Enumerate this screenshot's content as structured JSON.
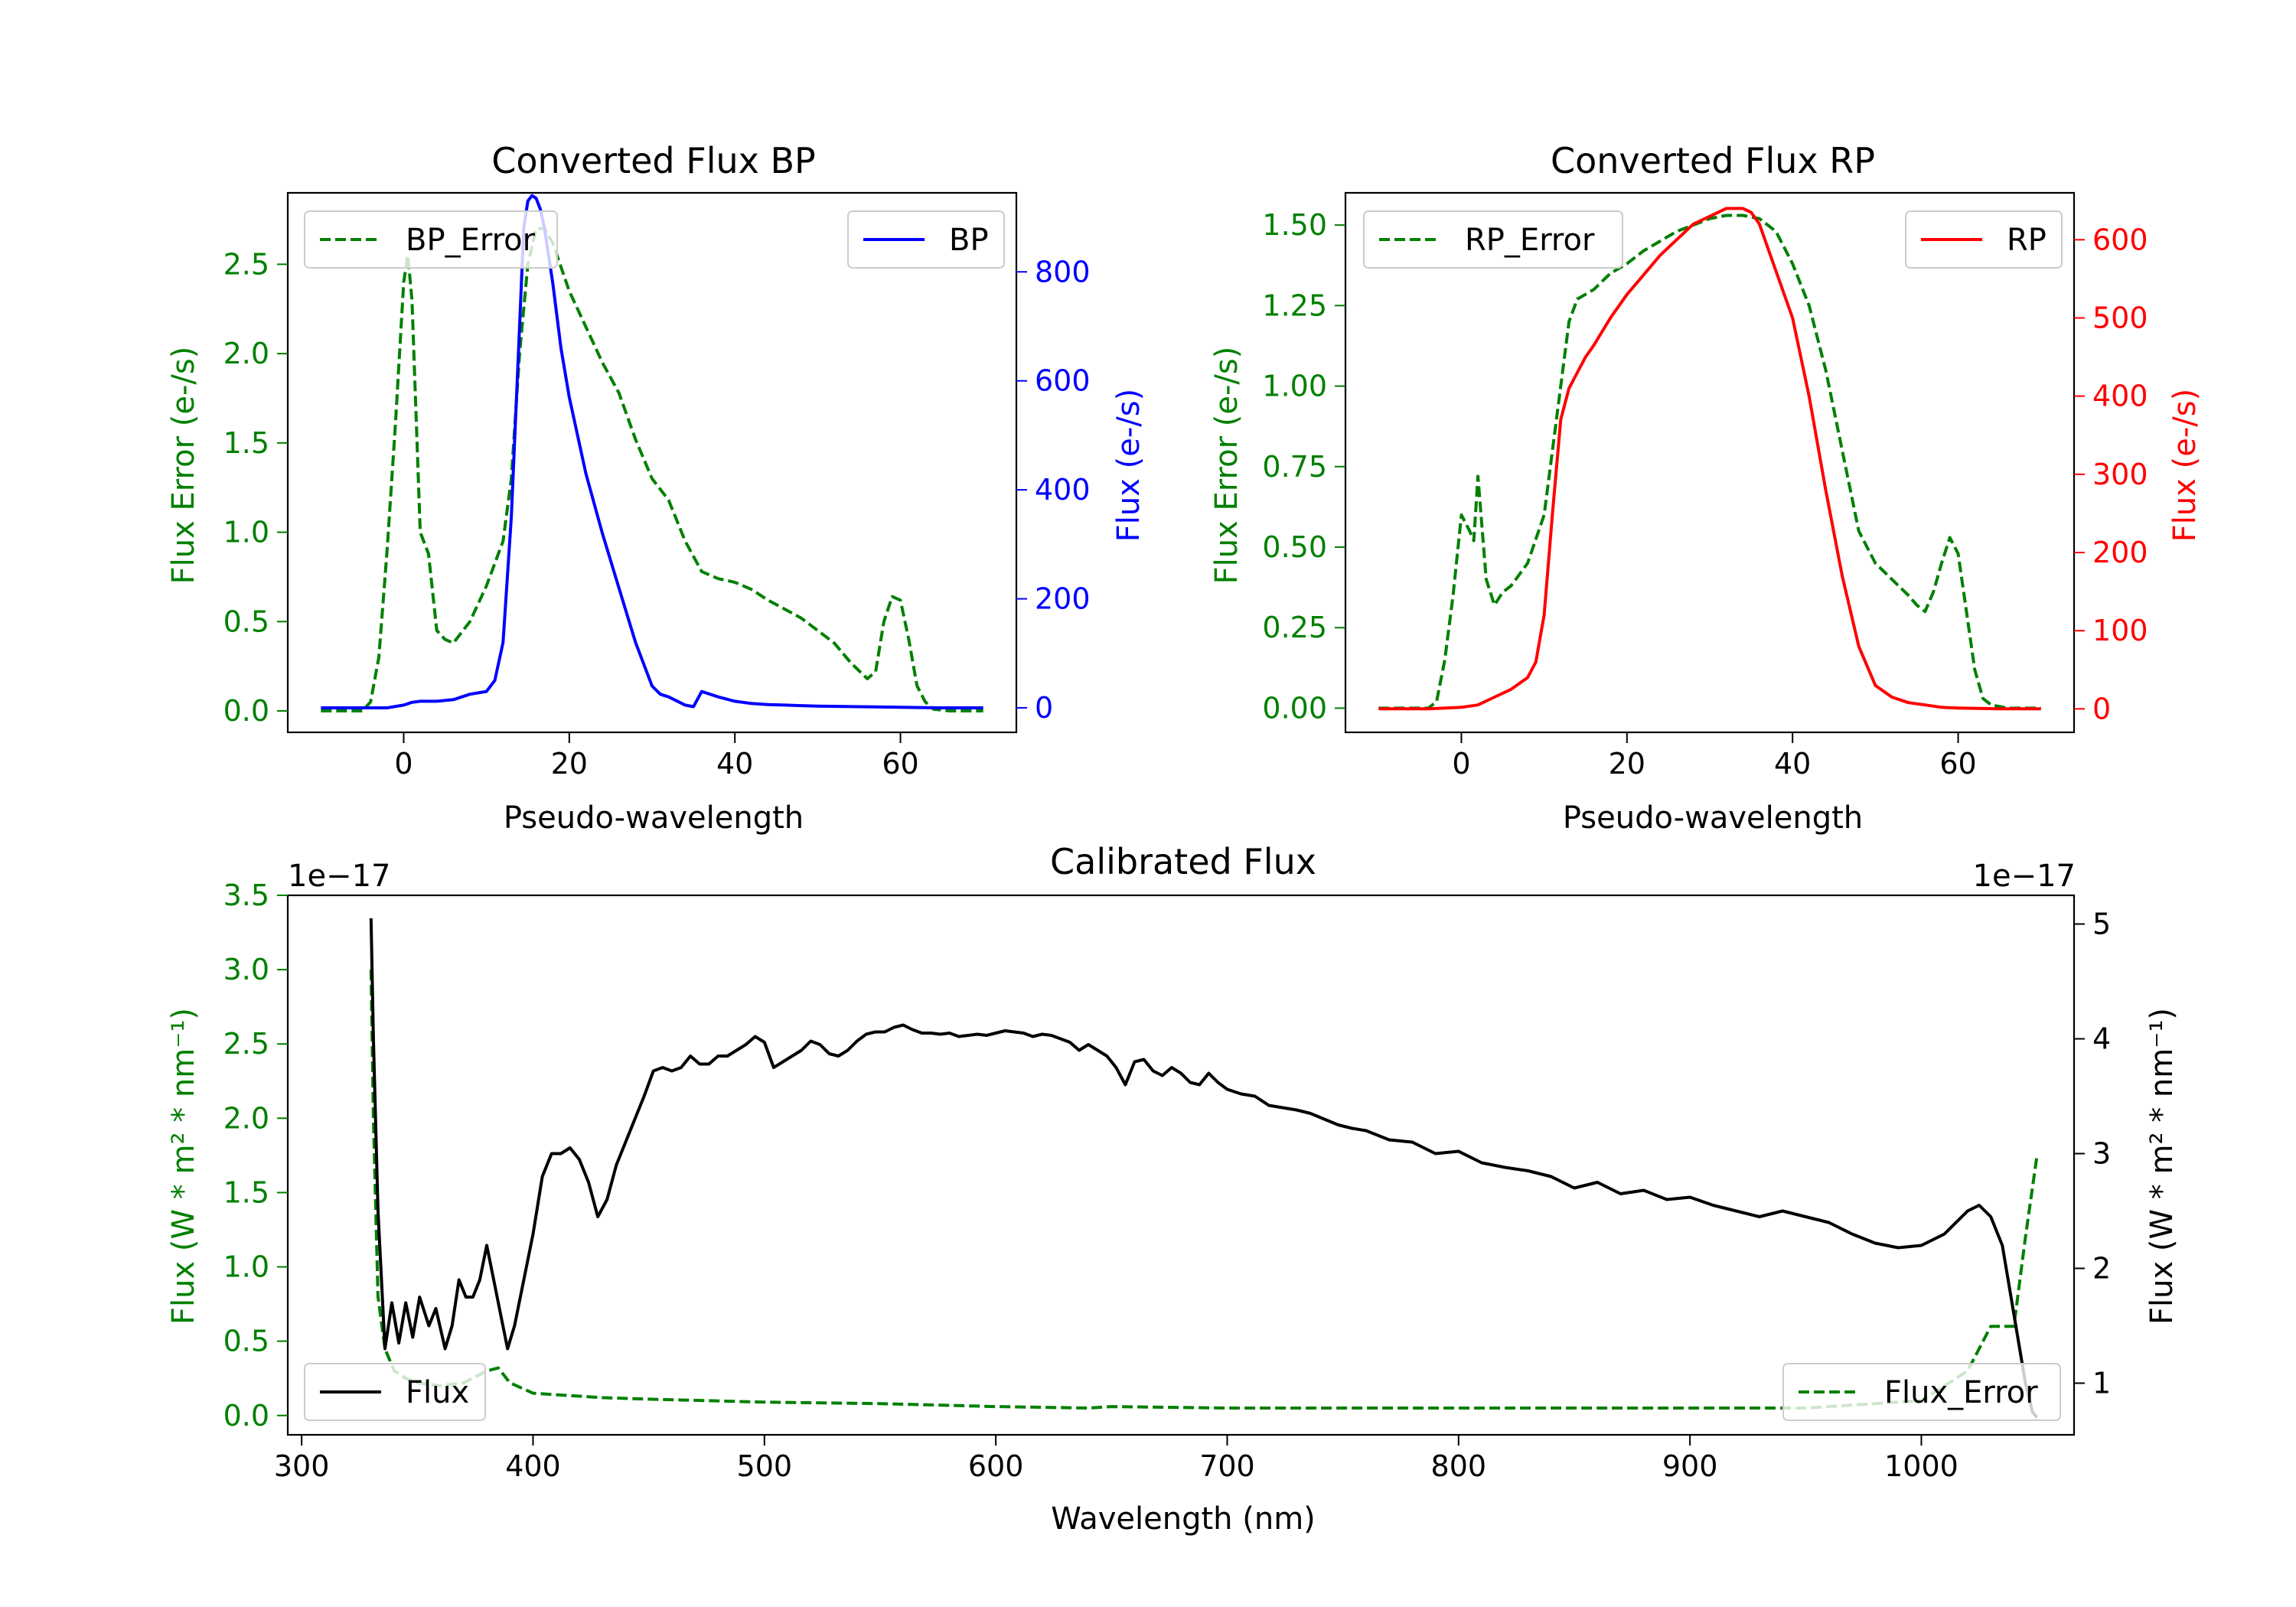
{
  "colors": {
    "axis": "#000000",
    "error": "#008000",
    "bp": "#0000ff",
    "rp": "#ff0000",
    "flux": "#000000",
    "legend_edge": "#cccccc"
  },
  "chart_data": [
    {
      "id": "bp",
      "type": "line",
      "title": "Converted Flux BP",
      "xlabel": "Pseudo-wavelength",
      "ylabel_left": "Flux Error (e-/s)",
      "ylabel_right": "Flux (e-/s)",
      "xlim": [
        -14,
        74
      ],
      "ylim_left": [
        -0.12,
        2.9
      ],
      "ylim_right": [
        -45,
        945
      ],
      "xticks": [
        0,
        20,
        40,
        60
      ],
      "yticks_left": [
        0.0,
        0.5,
        1.0,
        1.5,
        2.0,
        2.5
      ],
      "ytick_labels_left": [
        "0.0",
        "0.5",
        "1.0",
        "1.5",
        "2.0",
        "2.5"
      ],
      "yticks_right": [
        0,
        200,
        400,
        600,
        800
      ],
      "ytick_labels_right": [
        "0",
        "200",
        "400",
        "600",
        "800"
      ],
      "series": [
        {
          "name": "BP_Error",
          "axis": "left",
          "style": "dashed",
          "color": "#008000",
          "x": [
            -10,
            -5,
            -4,
            -3,
            -2,
            -1,
            0,
            0.5,
            1,
            2,
            3,
            4,
            5,
            6,
            8,
            10,
            12,
            13,
            14,
            15,
            16,
            17,
            18,
            20,
            22,
            24,
            26,
            28,
            30,
            32,
            34,
            36,
            38,
            40,
            42,
            44,
            46,
            48,
            50,
            52,
            54,
            56,
            57,
            58,
            59,
            60,
            61,
            62,
            63,
            64,
            66,
            70
          ],
          "values": [
            0,
            0,
            0.05,
            0.3,
            0.9,
            1.6,
            2.4,
            2.55,
            2.3,
            1.0,
            0.88,
            0.45,
            0.4,
            0.38,
            0.5,
            0.7,
            0.95,
            1.3,
            2.0,
            2.5,
            2.7,
            2.7,
            2.62,
            2.35,
            2.15,
            1.95,
            1.78,
            1.52,
            1.3,
            1.18,
            0.95,
            0.78,
            0.74,
            0.72,
            0.68,
            0.62,
            0.57,
            0.52,
            0.45,
            0.38,
            0.27,
            0.18,
            0.22,
            0.5,
            0.64,
            0.62,
            0.4,
            0.14,
            0.05,
            0.01,
            0,
            0
          ]
        },
        {
          "name": "BP",
          "axis": "right",
          "style": "solid",
          "color": "#0000ff",
          "x": [
            -10,
            -2,
            0,
            1,
            2,
            4,
            6,
            8,
            10,
            11,
            12,
            13,
            14,
            14.5,
            15,
            15.5,
            16,
            16.5,
            17,
            18,
            19,
            20,
            22,
            24,
            26,
            28,
            30,
            31,
            32,
            34,
            35,
            36,
            38,
            40,
            42,
            44,
            46,
            48,
            50,
            55,
            60,
            65,
            70
          ],
          "values": [
            0,
            0,
            5,
            10,
            12,
            12,
            15,
            25,
            30,
            50,
            120,
            350,
            700,
            880,
            930,
            940,
            935,
            915,
            880,
            780,
            660,
            570,
            430,
            320,
            220,
            120,
            40,
            25,
            20,
            5,
            2,
            30,
            20,
            12,
            8,
            6,
            5,
            4,
            3,
            2,
            1,
            0,
            0
          ]
        }
      ],
      "legend": [
        {
          "label": "BP_Error",
          "position": "top-left"
        },
        {
          "label": "BP",
          "position": "top-right"
        }
      ]
    },
    {
      "id": "rp",
      "type": "line",
      "title": "Converted Flux RP",
      "xlabel": "Pseudo-wavelength",
      "ylabel_left": "Flux Error (e-/s)",
      "ylabel_right": "Flux (e-/s)",
      "xlim": [
        -14,
        74
      ],
      "ylim_left": [
        -0.075,
        1.6
      ],
      "ylim_right": [
        -30,
        660
      ],
      "xticks": [
        0,
        20,
        40,
        60
      ],
      "yticks_left": [
        0.0,
        0.25,
        0.5,
        0.75,
        1.0,
        1.25,
        1.5
      ],
      "ytick_labels_left": [
        "0.00",
        "0.25",
        "0.50",
        "0.75",
        "1.00",
        "1.25",
        "1.50"
      ],
      "yticks_right": [
        0,
        100,
        200,
        300,
        400,
        500,
        600
      ],
      "ytick_labels_right": [
        "0",
        "100",
        "200",
        "300",
        "400",
        "500",
        "600"
      ],
      "series": [
        {
          "name": "RP_Error",
          "axis": "left",
          "style": "dashed",
          "color": "#008000",
          "x": [
            -10,
            -4,
            -3,
            -2,
            -1,
            0,
            1,
            1.5,
            2,
            3,
            4,
            5,
            6,
            8,
            10,
            12,
            13,
            14,
            16,
            18,
            20,
            22,
            24,
            26,
            28,
            30,
            32,
            34,
            36,
            38,
            40,
            42,
            44,
            46,
            48,
            50,
            52,
            54,
            55,
            56,
            57,
            58,
            59,
            60,
            61,
            62,
            63,
            64,
            66,
            70
          ],
          "values": [
            0,
            0,
            0.02,
            0.15,
            0.35,
            0.6,
            0.55,
            0.52,
            0.72,
            0.4,
            0.32,
            0.36,
            0.38,
            0.45,
            0.6,
            1.0,
            1.2,
            1.27,
            1.3,
            1.35,
            1.38,
            1.42,
            1.45,
            1.48,
            1.5,
            1.52,
            1.53,
            1.53,
            1.52,
            1.48,
            1.38,
            1.25,
            1.05,
            0.8,
            0.55,
            0.45,
            0.4,
            0.35,
            0.32,
            0.3,
            0.36,
            0.45,
            0.53,
            0.48,
            0.3,
            0.12,
            0.03,
            0.01,
            0,
            0
          ]
        },
        {
          "name": "RP",
          "axis": "right",
          "style": "solid",
          "color": "#ff0000",
          "x": [
            -10,
            -4,
            0,
            2,
            4,
            6,
            8,
            9,
            10,
            11,
            12,
            13,
            14,
            15,
            16,
            18,
            20,
            22,
            24,
            26,
            28,
            30,
            32,
            34,
            35,
            36,
            37,
            38,
            40,
            42,
            44,
            46,
            48,
            50,
            52,
            54,
            56,
            58,
            60,
            65,
            70
          ],
          "values": [
            0,
            0,
            2,
            5,
            15,
            25,
            40,
            60,
            120,
            250,
            370,
            410,
            430,
            450,
            465,
            500,
            530,
            555,
            580,
            600,
            620,
            630,
            640,
            640,
            635,
            620,
            590,
            560,
            500,
            400,
            280,
            170,
            80,
            30,
            15,
            8,
            5,
            2,
            1,
            0,
            0
          ]
        }
      ],
      "legend": [
        {
          "label": "RP_Error",
          "position": "top-left"
        },
        {
          "label": "RP",
          "position": "top-right"
        }
      ]
    },
    {
      "id": "calibrated",
      "type": "line",
      "title": "Calibrated Flux",
      "xlabel": "Wavelength (nm)",
      "ylabel_left": "Flux (W * m² * nm⁻¹)",
      "ylabel_right": "Flux (W * m² * nm⁻¹)",
      "offset_left": "1e−17",
      "offset_right": "1e−17",
      "xlim": [
        294,
        1066
      ],
      "ylim_left": [
        -0.13,
        3.5
      ],
      "ylim_right": [
        0.55,
        5.25
      ],
      "xticks": [
        300,
        400,
        500,
        600,
        700,
        800,
        900,
        1000
      ],
      "yticks_left": [
        0.0,
        0.5,
        1.0,
        1.5,
        2.0,
        2.5,
        3.0,
        3.5
      ],
      "ytick_labels_left": [
        "0.0",
        "0.5",
        "1.0",
        "1.5",
        "2.0",
        "2.5",
        "3.0",
        "3.5"
      ],
      "yticks_right": [
        1,
        2,
        3,
        4,
        5
      ],
      "ytick_labels_right": [
        "1",
        "2",
        "3",
        "4",
        "5"
      ],
      "series": [
        {
          "name": "Flux_Error",
          "axis": "left",
          "style": "dashed",
          "color": "#008000",
          "x": [
            330,
            331,
            333,
            336,
            340,
            345,
            350,
            360,
            370,
            380,
            385,
            390,
            400,
            410,
            420,
            430,
            450,
            500,
            550,
            600,
            640,
            650,
            700,
            800,
            900,
            950,
            1000,
            1020,
            1030,
            1040,
            1045,
            1050
          ],
          "values": [
            3.0,
            2.0,
            0.8,
            0.45,
            0.3,
            0.25,
            0.22,
            0.2,
            0.22,
            0.3,
            0.32,
            0.22,
            0.15,
            0.14,
            0.13,
            0.12,
            0.11,
            0.09,
            0.08,
            0.06,
            0.05,
            0.06,
            0.05,
            0.05,
            0.05,
            0.05,
            0.1,
            0.3,
            0.6,
            0.6,
            1.2,
            1.75
          ]
        },
        {
          "name": "Flux",
          "axis": "right",
          "style": "solid",
          "color": "#000000",
          "x": [
            330,
            331,
            333,
            336,
            339,
            342,
            345,
            348,
            351,
            355,
            358,
            362,
            365,
            368,
            371,
            374,
            377,
            380,
            383,
            386,
            389,
            392,
            396,
            400,
            404,
            408,
            412,
            416,
            420,
            424,
            428,
            432,
            436,
            440,
            444,
            448,
            452,
            456,
            460,
            464,
            468,
            472,
            476,
            480,
            484,
            488,
            492,
            496,
            500,
            504,
            508,
            512,
            516,
            520,
            524,
            528,
            532,
            536,
            540,
            544,
            548,
            552,
            556,
            560,
            564,
            568,
            572,
            576,
            580,
            584,
            588,
            592,
            596,
            600,
            604,
            608,
            612,
            616,
            620,
            624,
            628,
            632,
            636,
            640,
            644,
            648,
            652,
            656,
            660,
            664,
            668,
            672,
            676,
            680,
            684,
            688,
            692,
            696,
            700,
            706,
            712,
            718,
            724,
            730,
            736,
            742,
            748,
            754,
            760,
            770,
            780,
            790,
            800,
            810,
            820,
            830,
            840,
            850,
            860,
            870,
            880,
            890,
            900,
            910,
            920,
            930,
            940,
            950,
            960,
            970,
            980,
            990,
            1000,
            1010,
            1020,
            1025,
            1030,
            1035,
            1040,
            1045,
            1048,
            1050
          ],
          "values": [
            5.05,
            4.0,
            2.5,
            1.3,
            1.7,
            1.35,
            1.7,
            1.4,
            1.75,
            1.5,
            1.65,
            1.3,
            1.5,
            1.9,
            1.75,
            1.75,
            1.9,
            2.2,
            1.9,
            1.6,
            1.3,
            1.5,
            1.9,
            2.3,
            2.8,
            3.0,
            3.0,
            3.05,
            2.95,
            2.75,
            2.45,
            2.6,
            2.9,
            3.1,
            3.3,
            3.5,
            3.72,
            3.75,
            3.72,
            3.75,
            3.85,
            3.78,
            3.78,
            3.85,
            3.85,
            3.9,
            3.95,
            4.02,
            3.97,
            3.75,
            3.8,
            3.85,
            3.9,
            3.98,
            3.95,
            3.87,
            3.85,
            3.9,
            3.98,
            4.04,
            4.06,
            4.06,
            4.1,
            4.12,
            4.08,
            4.05,
            4.05,
            4.04,
            4.05,
            4.02,
            4.03,
            4.04,
            4.03,
            4.05,
            4.07,
            4.06,
            4.05,
            4.02,
            4.04,
            4.03,
            4.0,
            3.97,
            3.9,
            3.95,
            3.9,
            3.85,
            3.75,
            3.6,
            3.8,
            3.82,
            3.72,
            3.68,
            3.75,
            3.7,
            3.62,
            3.6,
            3.7,
            3.62,
            3.56,
            3.52,
            3.5,
            3.42,
            3.4,
            3.38,
            3.35,
            3.3,
            3.25,
            3.22,
            3.2,
            3.12,
            3.1,
            3.0,
            3.02,
            2.92,
            2.88,
            2.85,
            2.8,
            2.7,
            2.75,
            2.65,
            2.68,
            2.6,
            2.62,
            2.55,
            2.5,
            2.45,
            2.5,
            2.45,
            2.4,
            2.3,
            2.22,
            2.18,
            2.2,
            2.3,
            2.5,
            2.55,
            2.45,
            2.2,
            1.6,
            1.0,
            0.75,
            0.7
          ]
        }
      ],
      "legend": [
        {
          "label": "Flux",
          "position": "bottom-left"
        },
        {
          "label": "Flux_Error",
          "position": "bottom-right"
        }
      ]
    }
  ]
}
